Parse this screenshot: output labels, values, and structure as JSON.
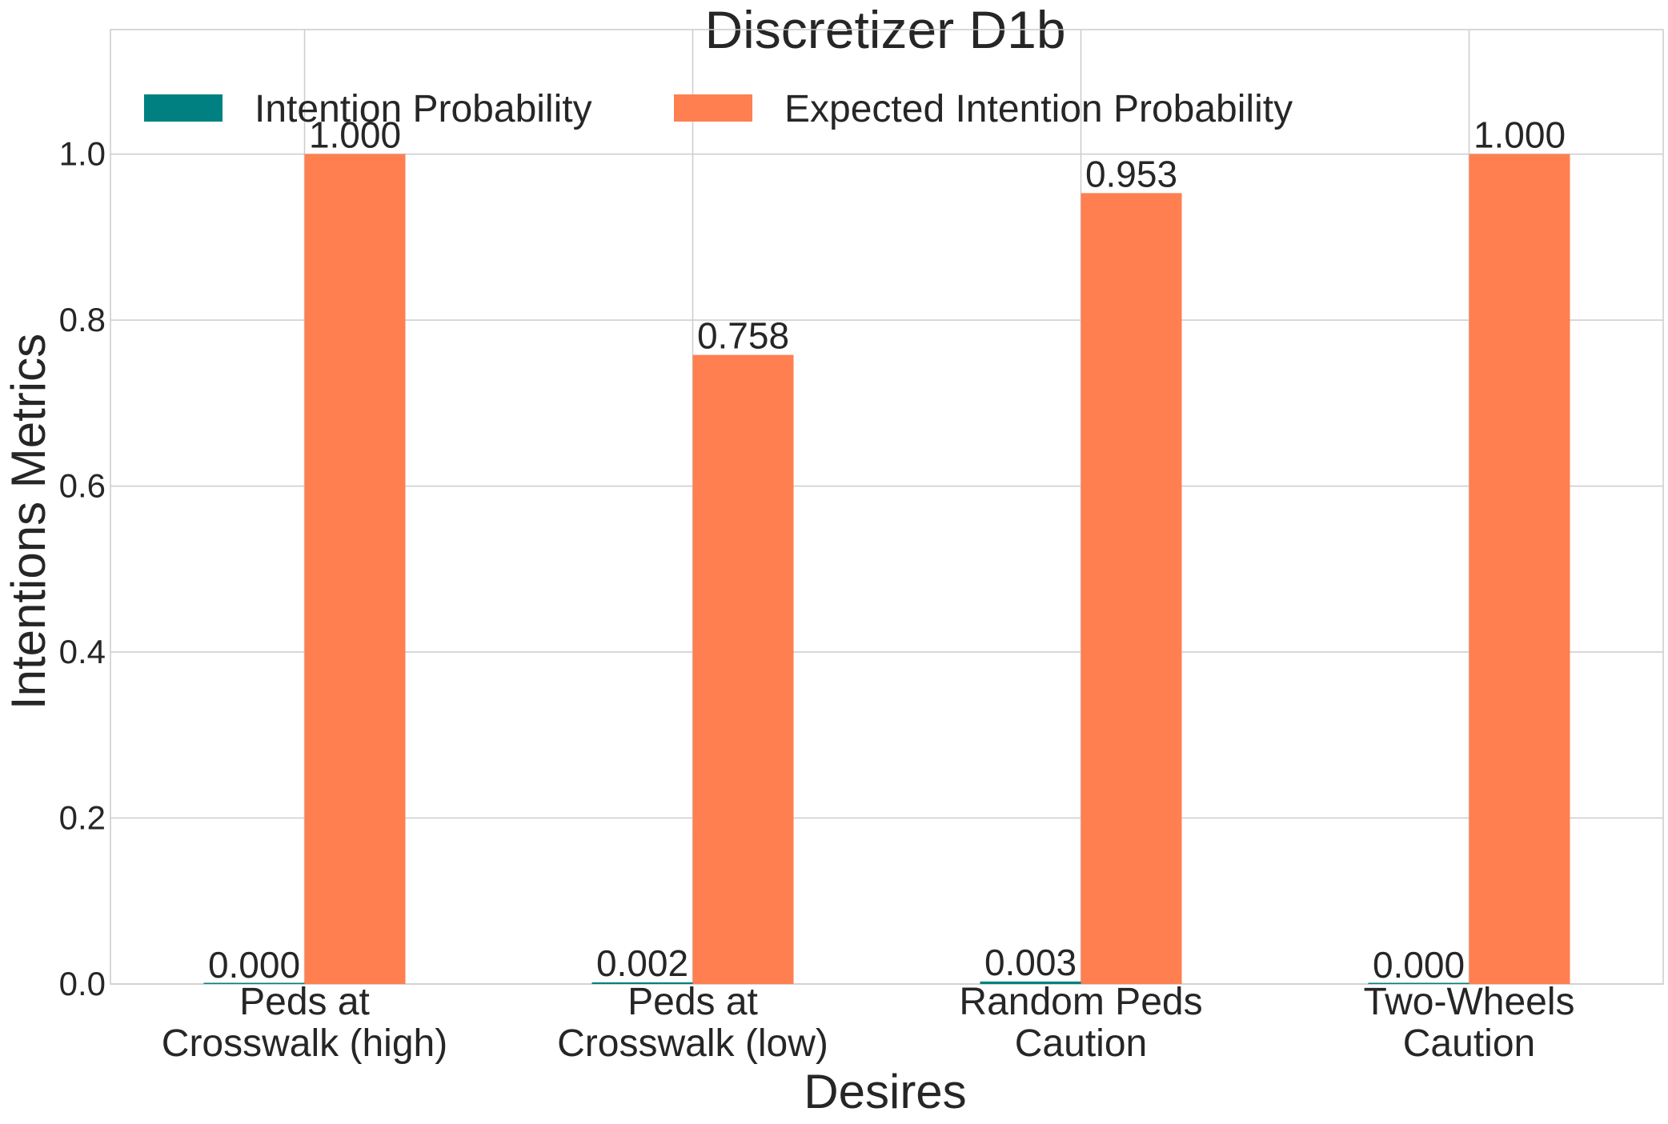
{
  "chart_data": {
    "type": "bar",
    "title": "Discretizer D1b",
    "xlabel": "Desires",
    "ylabel": "Intentions Metrics",
    "categories": [
      [
        "Peds at",
        "Crosswalk (high)"
      ],
      [
        "Peds at",
        "Crosswalk (low)"
      ],
      [
        "Random Peds",
        "Caution"
      ],
      [
        "Two-Wheels",
        "Caution"
      ]
    ],
    "series": [
      {
        "name": "Intention Probability",
        "color": "#008080",
        "values": [
          0.0,
          0.002,
          0.003,
          0.0
        ],
        "labels": [
          "0.000",
          "0.002",
          "0.003",
          "0.000"
        ]
      },
      {
        "name": "Expected Intention Probability",
        "color": "#ff7f50",
        "values": [
          1.0,
          0.758,
          0.953,
          1.0
        ],
        "labels": [
          "1.000",
          "0.758",
          "0.953",
          "1.000"
        ]
      }
    ],
    "ylim": [
      0,
      1.15
    ],
    "yticks": [
      0.0,
      0.2,
      0.4,
      0.6,
      0.8,
      1.0
    ],
    "ytick_labels": [
      "0.0",
      "0.2",
      "0.4",
      "0.6",
      "0.8",
      "1.0"
    ],
    "grid": true,
    "legend": "top-left, 2 columns"
  }
}
